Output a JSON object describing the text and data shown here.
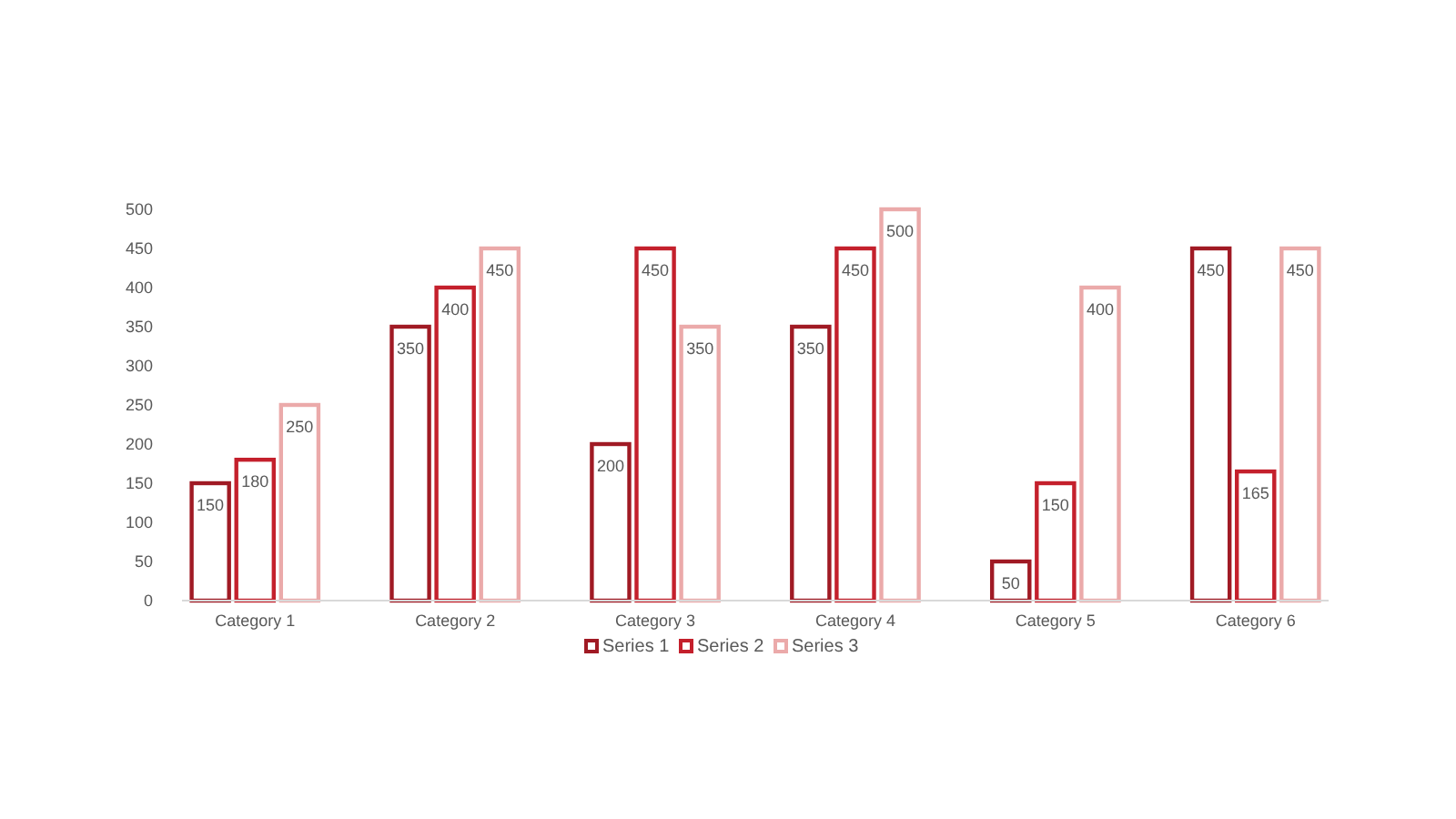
{
  "chart_data": {
    "type": "bar",
    "categories": [
      "Category 1",
      "Category 2",
      "Category 3",
      "Category 4",
      "Category 5",
      "Category 6"
    ],
    "series": [
      {
        "name": "Series 1",
        "color": "#a01a24",
        "values": [
          150,
          350,
          200,
          350,
          50,
          450
        ]
      },
      {
        "name": "Series 2",
        "color": "#c4202c",
        "values": [
          180,
          400,
          450,
          450,
          150,
          165
        ]
      },
      {
        "name": "Series 3",
        "color": "#ebaaaa",
        "values": [
          250,
          450,
          350,
          500,
          400,
          450
        ]
      }
    ],
    "ylim": [
      0,
      500
    ],
    "yticks": [
      0,
      50,
      100,
      150,
      200,
      250,
      300,
      350,
      400,
      450,
      500
    ],
    "data_labels": true,
    "legend": "bottom",
    "grid": false
  }
}
